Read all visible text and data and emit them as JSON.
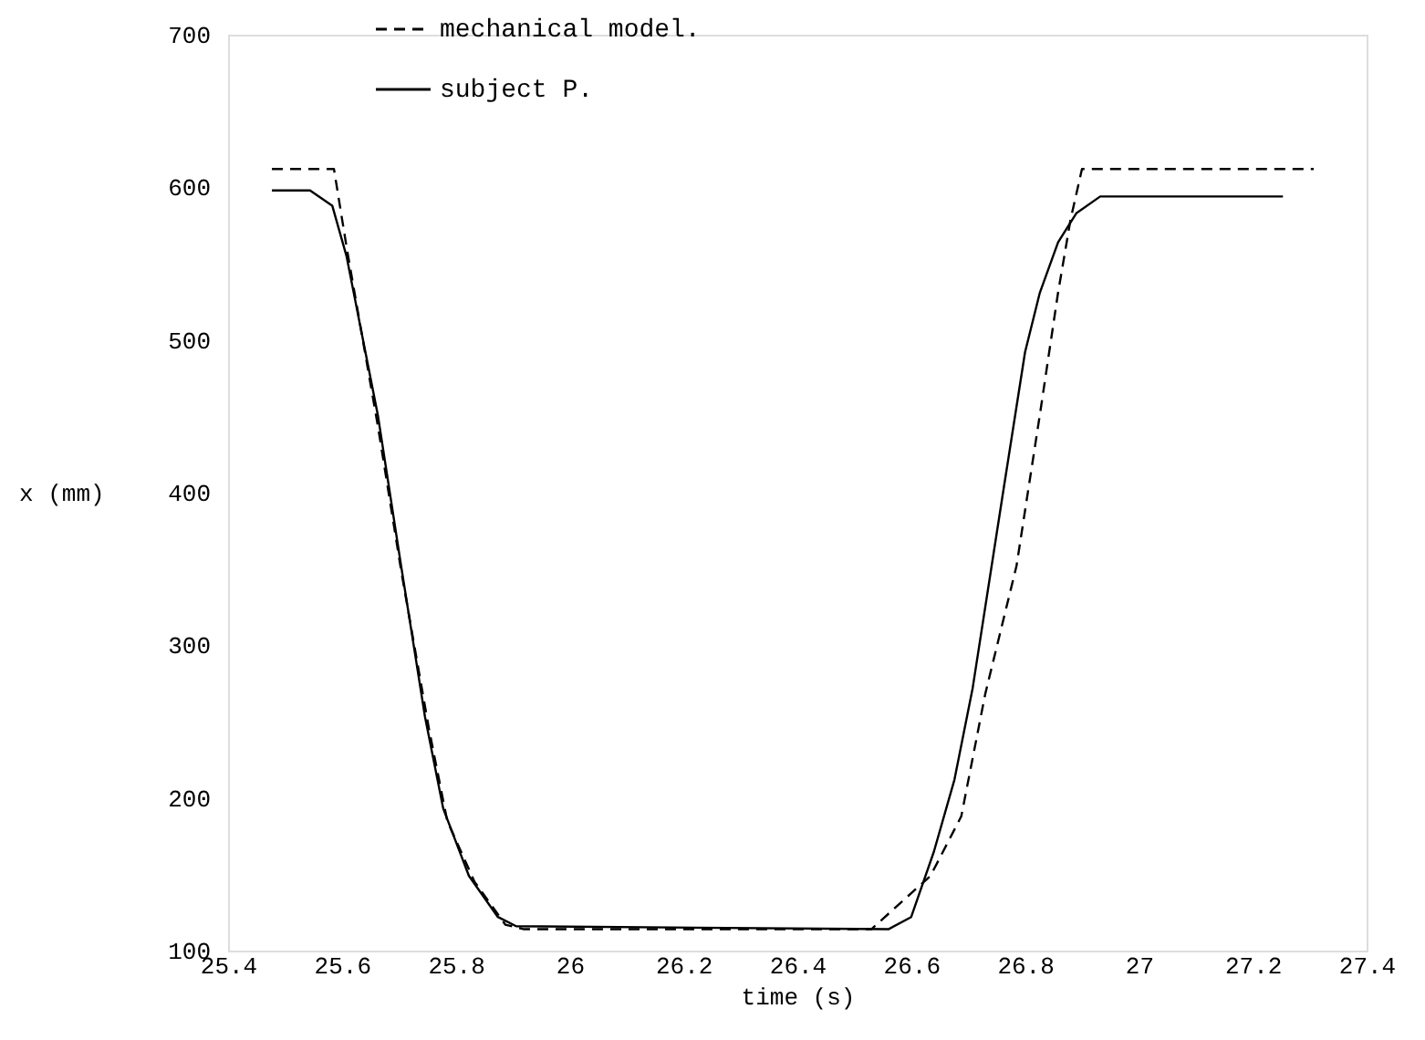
{
  "chart_data": {
    "type": "line",
    "xlabel": "time (s)",
    "ylabel": "x (mm)",
    "xlim": [
      25.4,
      27.4
    ],
    "xticks": [
      25.4,
      25.6,
      25.8,
      26,
      26.2,
      26.4,
      26.6,
      26.8,
      27,
      27.2,
      27.4
    ],
    "ylim": [
      100,
      700
    ],
    "yticks": [
      100,
      200,
      300,
      400,
      500,
      600,
      700
    ],
    "grid": false,
    "legend": "top",
    "marker": "none",
    "series": [
      {
        "name": "mechanical model.",
        "color": "#000000",
        "line_style": "dashed",
        "x": [
          25.477,
          25.586,
          25.609,
          25.663,
          25.704,
          25.753,
          25.785,
          25.833,
          25.887,
          25.92,
          26.53,
          26.634,
          26.688,
          26.73,
          26.785,
          26.826,
          26.858,
          26.88,
          26.9,
          27.307
        ],
        "values": [
          612,
          612,
          559,
          444,
          349,
          245,
          185,
          145,
          117,
          114,
          114,
          149,
          188,
          268,
          352,
          451,
          531,
          579,
          612,
          612
        ]
      },
      {
        "name": "subject P.",
        "color": "#000000",
        "line_style": "solid",
        "x": [
          25.477,
          25.544,
          25.583,
          25.608,
          25.663,
          25.704,
          25.746,
          25.778,
          25.823,
          25.874,
          25.906,
          26.56,
          26.6,
          26.64,
          26.676,
          26.708,
          26.763,
          26.8,
          26.826,
          26.858,
          26.89,
          26.932,
          27.253
        ],
        "values": [
          598,
          598,
          588,
          555,
          451,
          352,
          253,
          193,
          149,
          122,
          116,
          114,
          122,
          165,
          212,
          272,
          404,
          492,
          531,
          564,
          583,
          594,
          594
        ]
      }
    ]
  }
}
